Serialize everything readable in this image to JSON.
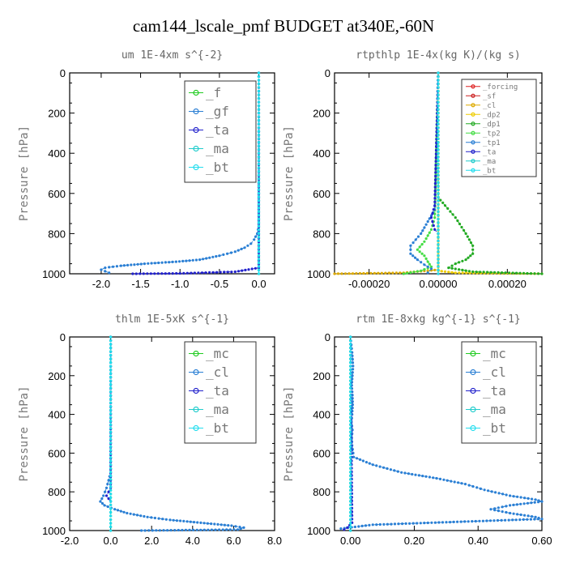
{
  "title": "cam144_lscale_pmf  BUDGET at340E,-60N",
  "chart_data": [
    {
      "type": "line",
      "title": "um  1E-4xm s^{-2}",
      "ylabel": "Pressure [hPa]",
      "xlim": [
        -2.4,
        0.2
      ],
      "ylim": [
        1000,
        0
      ],
      "xticks": [
        -2.0,
        -1.5,
        -1.0,
        -0.5,
        0.0
      ],
      "xticklabels": [
        "-2.0",
        "-1.5",
        "-1.0",
        "-0.5",
        "0.0"
      ],
      "yticks": [
        0,
        200,
        400,
        600,
        800,
        1000
      ],
      "yticklabels": [
        "0",
        "200",
        "400",
        "600",
        "800",
        "1000"
      ],
      "legend": [
        "_f",
        "_gf",
        "_ta",
        "_ma",
        "_bt"
      ],
      "legend_position": "top-right",
      "series": [
        {
          "name": "_f",
          "color": "#22cc22",
          "x": [
            0,
            0
          ],
          "y": [
            0,
            1000
          ]
        },
        {
          "name": "_gf",
          "color": "#2a7fd4",
          "x": [
            0,
            0,
            -0.02,
            -0.06,
            -0.1,
            -0.18,
            -0.3,
            -0.5,
            -0.75,
            -1.05,
            -1.45,
            -1.75,
            -1.95,
            -2.0,
            -1.9
          ],
          "y": [
            0,
            760,
            800,
            830,
            850,
            870,
            890,
            910,
            930,
            940,
            950,
            960,
            970,
            980,
            995
          ]
        },
        {
          "name": "_ta",
          "color": "#2222cc",
          "x": [
            0,
            0,
            -0.3,
            -1.0,
            -1.6
          ],
          "y": [
            0,
            970,
            990,
            998,
            1000
          ]
        },
        {
          "name": "_ma",
          "color": "#22cccc",
          "x": [
            0,
            0
          ],
          "y": [
            0,
            1000
          ]
        },
        {
          "name": "_bt",
          "color": "#22ddee",
          "x": [
            0,
            0
          ],
          "y": [
            0,
            1000
          ]
        }
      ]
    },
    {
      "type": "line",
      "title": "rtpthlp  1E-4x(kg K)/(kg s)",
      "ylabel": "Pressure [hPa]",
      "xlim": [
        -0.0003,
        0.0003
      ],
      "ylim": [
        1000,
        0
      ],
      "xticks": [
        -0.0002,
        0.0,
        0.0002
      ],
      "xticklabels": [
        "-0.00020",
        "0.00000",
        "0.00020"
      ],
      "yticks": [
        0,
        200,
        400,
        600,
        800,
        1000
      ],
      "yticklabels": [
        "0",
        "200",
        "400",
        "600",
        "800",
        "1000"
      ],
      "legend": [
        "_forcing",
        "_sf",
        "_cl",
        "_dp2",
        "_dp1",
        "_tp2",
        "_tp1",
        "_ta",
        "_ma",
        "_bt"
      ],
      "legend_position": "top-right",
      "series": [
        {
          "name": "_forcing",
          "color": "#dd2222",
          "x": [
            0,
            0
          ],
          "y": [
            0,
            1000
          ]
        },
        {
          "name": "_sf",
          "color": "#cc2222",
          "x": [
            0,
            0
          ],
          "y": [
            0,
            1000
          ]
        },
        {
          "name": "_cl",
          "color": "#ddaa00",
          "x": [
            0,
            0,
            -0.0001,
            -0.0003
          ],
          "y": [
            0,
            980,
            995,
            1000
          ]
        },
        {
          "name": "_dp2",
          "color": "#eecc00",
          "x": [
            0,
            0,
            5e-05,
            0.0003
          ],
          "y": [
            0,
            985,
            995,
            1000
          ]
        },
        {
          "name": "_dp1",
          "color": "#22aa22",
          "x": [
            0,
            0,
            2e-05,
            5e-05,
            8e-05,
            0.0001,
            0.0001,
            8e-05,
            5e-05,
            3e-05,
            0.0001,
            0.0003
          ],
          "y": [
            0,
            620,
            660,
            720,
            800,
            860,
            900,
            930,
            950,
            970,
            990,
            1000
          ]
        },
        {
          "name": "_tp2",
          "color": "#44dd44",
          "x": [
            0,
            -1e-05,
            -2e-05,
            -4e-05,
            -6e-05,
            -4e-05,
            -3e-05,
            -2e-05,
            -5e-05,
            -0.0001
          ],
          "y": [
            0,
            720,
            780,
            840,
            880,
            910,
            940,
            965,
            985,
            1000
          ]
        },
        {
          "name": "_tp1",
          "color": "#2a7fd4",
          "x": [
            0,
            -1e-05,
            -3e-05,
            -5e-05,
            -8e-05,
            -8e-05,
            -6e-05,
            -4e-05,
            -2e-05,
            -3e-05
          ],
          "y": [
            0,
            680,
            740,
            800,
            860,
            900,
            930,
            955,
            975,
            995
          ]
        },
        {
          "name": "_ta",
          "color": "#2222cc",
          "x": [
            0,
            -1e-05,
            -2e-05,
            -1e-05,
            0
          ],
          "y": [
            0,
            660,
            720,
            780,
            800
          ]
        },
        {
          "name": "_ma",
          "color": "#22cccc",
          "x": [
            0,
            0
          ],
          "y": [
            0,
            1000
          ]
        },
        {
          "name": "_bt",
          "color": "#22ddee",
          "x": [
            0,
            0
          ],
          "y": [
            0,
            1000
          ]
        }
      ]
    },
    {
      "type": "line",
      "title": "thlm  1E-5xK s^{-1}",
      "ylabel": "Pressure [hPa]",
      "xlim": [
        -2.0,
        8.0
      ],
      "ylim": [
        1000,
        0
      ],
      "xticks": [
        -2.0,
        0.0,
        2.0,
        4.0,
        6.0,
        8.0
      ],
      "xticklabels": [
        "-2.0",
        "0.0",
        "2.0",
        "4.0",
        "6.0",
        "8.0"
      ],
      "yticks": [
        0,
        200,
        400,
        600,
        800,
        1000
      ],
      "yticklabels": [
        "0",
        "200",
        "400",
        "600",
        "800",
        "1000"
      ],
      "legend": [
        "_mc",
        "_cl",
        "_ta",
        "_ma",
        "_bt"
      ],
      "legend_position": "top-right",
      "series": [
        {
          "name": "_mc",
          "color": "#22cc22",
          "x": [
            0,
            0
          ],
          "y": [
            0,
            1000
          ]
        },
        {
          "name": "_cl",
          "color": "#2a7fd4",
          "x": [
            0,
            0,
            -0.1,
            -0.2,
            -0.35,
            -0.5,
            -0.3,
            0.2,
            0.8,
            1.8,
            2.9,
            3.9,
            4.9,
            5.9,
            6.5,
            6.2,
            1.5
          ],
          "y": [
            0,
            700,
            740,
            780,
            820,
            850,
            870,
            890,
            910,
            930,
            945,
            955,
            965,
            975,
            985,
            995,
            1000
          ]
        },
        {
          "name": "_ta",
          "color": "#2222cc",
          "x": [
            0,
            0,
            -0.2,
            0
          ],
          "y": [
            0,
            780,
            820,
            850
          ]
        },
        {
          "name": "_ma",
          "color": "#22cccc",
          "x": [
            0,
            0
          ],
          "y": [
            0,
            1000
          ]
        },
        {
          "name": "_bt",
          "color": "#22ddee",
          "x": [
            0,
            0
          ],
          "y": [
            0,
            1000
          ]
        }
      ]
    },
    {
      "type": "line",
      "title": "rtm  1E-8xkg kg^{-1} s^{-1}",
      "ylabel": "Pressure [hPa]",
      "xlim": [
        -0.05,
        0.6
      ],
      "ylim": [
        1000,
        0
      ],
      "xticks": [
        0.0,
        0.2,
        0.4,
        0.6
      ],
      "xticklabels": [
        "0.00",
        "0.20",
        "0.40",
        "0.60"
      ],
      "yticks": [
        0,
        200,
        400,
        600,
        800,
        1000
      ],
      "yticklabels": [
        "0",
        "200",
        "400",
        "600",
        "800",
        "1000"
      ],
      "legend": [
        "_mc",
        "_cl",
        "_ta",
        "_ma",
        "_bt"
      ],
      "legend_position": "top-right",
      "series": [
        {
          "name": "_mc",
          "color": "#22cc22",
          "x": [
            0,
            0
          ],
          "y": [
            0,
            1000
          ]
        },
        {
          "name": "_cl",
          "color": "#2a7fd4",
          "x": [
            0,
            0.005,
            0.008,
            0.006,
            0.004,
            0.006,
            0.007,
            0.005,
            0.003,
            0.006,
            0.004,
            0.005,
            0.01,
            0.07,
            0.16,
            0.27,
            0.36,
            0.42,
            0.5,
            0.58,
            0.6,
            0.5,
            0.44,
            0.5,
            0.58,
            0.6,
            0.07,
            -0.03
          ],
          "y": [
            0,
            80,
            150,
            200,
            250,
            300,
            350,
            400,
            440,
            480,
            520,
            560,
            620,
            660,
            700,
            730,
            760,
            790,
            820,
            840,
            850,
            870,
            890,
            910,
            930,
            940,
            970,
            990
          ]
        },
        {
          "name": "_ta",
          "color": "#2222cc",
          "x": [
            0,
            0.005,
            -0.01,
            -0.02
          ],
          "y": [
            0,
            960,
            985,
            995
          ]
        },
        {
          "name": "_ma",
          "color": "#22cccc",
          "x": [
            0,
            0
          ],
          "y": [
            0,
            1000
          ]
        },
        {
          "name": "_bt",
          "color": "#22ddee",
          "x": [
            0,
            0
          ],
          "y": [
            0,
            1000
          ]
        }
      ]
    }
  ]
}
